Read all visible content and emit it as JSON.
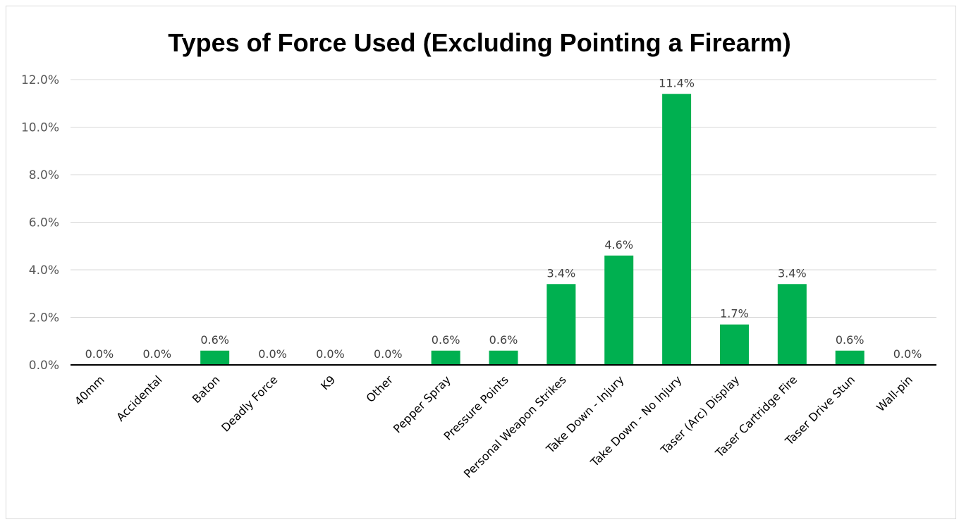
{
  "chart_data": {
    "type": "bar",
    "title": "Types of Force Used (Excluding Pointing a Firearm)",
    "xlabel": "",
    "ylabel": "",
    "ylim": [
      0,
      12
    ],
    "yticks": [
      0,
      2,
      4,
      6,
      8,
      10,
      12
    ],
    "ytick_labels": [
      "0.0%",
      "2.0%",
      "4.0%",
      "6.0%",
      "8.0%",
      "10.0%",
      "12.0%"
    ],
    "categories": [
      "40mm",
      "Accidental",
      "Baton",
      "Deadly Force",
      "K9",
      "Other",
      "Pepper Spray",
      "Pressure Points",
      "Personal Weapon Strikes",
      "Take Down - Injury",
      "Take Down - No Injury",
      "Taser (Arc) Display",
      "Taser Cartridge Fire",
      "Taser Drive Stun",
      "Wall-pin"
    ],
    "values": [
      0.0,
      0.0,
      0.6,
      0.0,
      0.0,
      0.0,
      0.6,
      0.6,
      3.4,
      4.6,
      11.4,
      1.7,
      3.4,
      0.6,
      0.0
    ],
    "data_labels": [
      "0.0%",
      "0.0%",
      "0.6%",
      "0.0%",
      "0.0%",
      "0.0%",
      "0.6%",
      "0.6%",
      "3.4%",
      "4.6%",
      "11.4%",
      "1.7%",
      "3.4%",
      "0.6%",
      "0.0%"
    ],
    "bar_color": "#00b050",
    "grid": true,
    "legend": "none"
  }
}
